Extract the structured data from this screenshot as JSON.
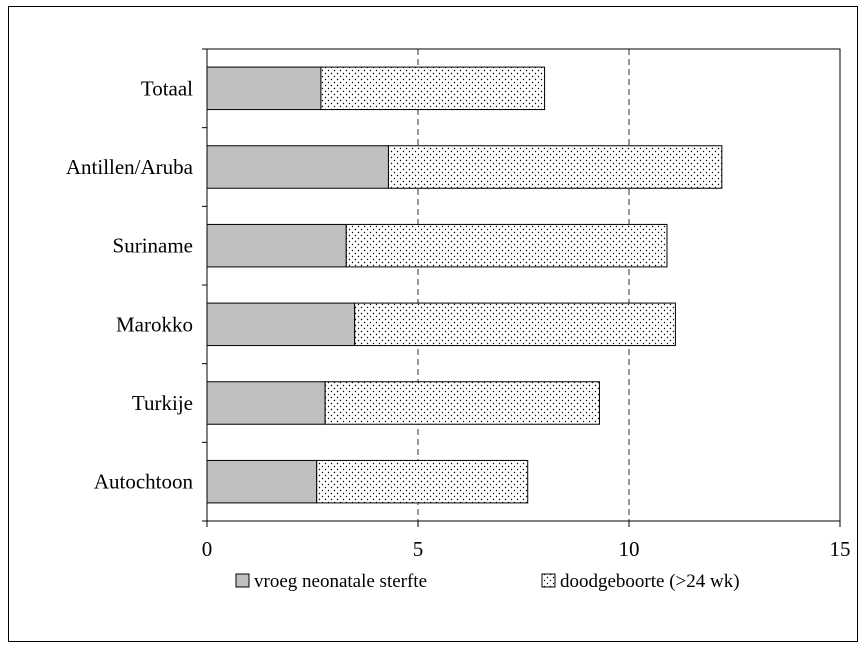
{
  "chart_data": {
    "type": "bar",
    "orientation": "horizontal",
    "stacked": true,
    "categories": [
      "Autochtoon",
      "Turkije",
      "Marokko",
      "Suriname",
      "Antillen/Aruba",
      "Totaal"
    ],
    "series": [
      {
        "name": "vroeg neonatale sterfte",
        "values": [
          2.6,
          2.8,
          3.5,
          3.3,
          4.3,
          2.7
        ],
        "color": "#c0c0c0",
        "pattern": "solid"
      },
      {
        "name": "doodgeboorte (>24 wk)",
        "values": [
          5.0,
          6.5,
          7.6,
          7.6,
          7.9,
          5.3
        ],
        "color": "#ffffff",
        "pattern": "dots"
      }
    ],
    "xlim": [
      0,
      15
    ],
    "xticks": [
      0,
      5,
      10,
      15
    ],
    "gridlines": "dashed vertical at major x ticks",
    "legend_position": "bottom",
    "title": "",
    "xlabel": "",
    "ylabel": ""
  }
}
